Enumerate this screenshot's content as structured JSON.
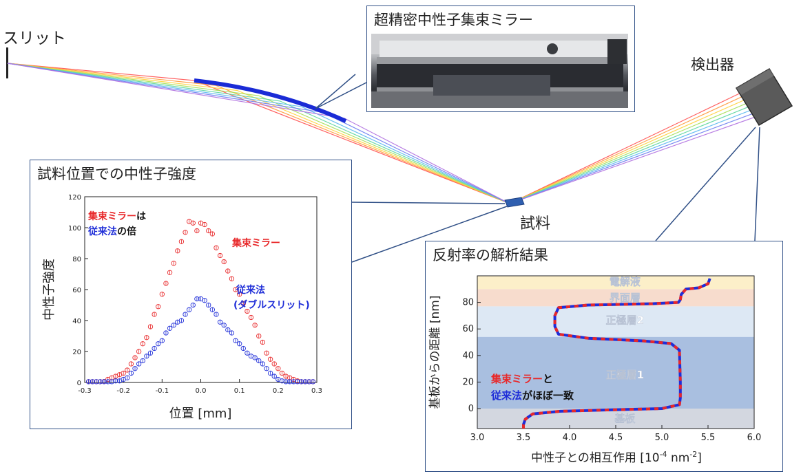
{
  "labels": {
    "slit": "スリット",
    "detector": "検出器",
    "sample": "試料"
  },
  "mirror_box": {
    "title": "超精密中性子集束ミラー"
  },
  "intensity_chart": {
    "title": "試料位置での中性子強度",
    "xlabel": "位置 [mm]",
    "ylabel": "中性子強度",
    "x_ticks": [
      "-0.3",
      "-0.2",
      "-0.1",
      "0.0",
      "0.1",
      "0.2",
      "0.3"
    ],
    "y_ticks": [
      "0",
      "20",
      "40",
      "60",
      "80",
      "100",
      "120"
    ],
    "annotation_line1_part1": "集束ミラー",
    "annotation_line1_part2": "は",
    "annotation_line2_part1": "従来法",
    "annotation_line2_part2": "の倍",
    "mirror_label": "集束ミラー",
    "conventional_label1": "従来法",
    "conventional_label2": "(ダブルスリット)"
  },
  "reflectivity_chart": {
    "title": "反射率の解析結果",
    "xlabel": "中性子との相互作用 [10",
    "xlabel_sup1": "-4",
    "xlabel_mid": " nm",
    "xlabel_sup2": "-2",
    "xlabel_end": "]",
    "ylabel": "基板からの距離 [nm]",
    "x_ticks": [
      "3.0",
      "3.5",
      "4.0",
      "4.5",
      "5.0",
      "5.5",
      "6.0"
    ],
    "y_ticks": [
      "0",
      "20",
      "40",
      "60",
      "80"
    ],
    "layers": [
      "電解液",
      "界面層",
      "正極層2",
      "正極層1",
      "基板"
    ],
    "annotation_line1_part1": "集束ミラー",
    "annotation_line1_part2": "と",
    "annotation_line2_part1": "従来法",
    "annotation_line2_part2": "がほぼ一致"
  },
  "colors": {
    "mirror": "#e8282a",
    "conventional": "#1f2ed8",
    "box_border": "#2f4f86",
    "mirror_plate": "#1a2bd6",
    "layer_electrolyte": "#fcefc9",
    "layer_interface": "#f7dccd",
    "layer_cathode2": "#dde8f4",
    "layer_cathode1": "#a9bfe0",
    "layer_substrate": "#d3d7e0"
  },
  "chart_data": [
    {
      "type": "scatter",
      "title": "試料位置での中性子強度",
      "xlabel": "位置 [mm]",
      "ylabel": "中性子強度",
      "xlim": [
        -0.3,
        0.3
      ],
      "ylim": [
        0,
        120
      ],
      "series": [
        {
          "name": "集束ミラー",
          "x": [
            -0.29,
            -0.28,
            -0.27,
            -0.26,
            -0.25,
            -0.24,
            -0.23,
            -0.22,
            -0.21,
            -0.2,
            -0.19,
            -0.18,
            -0.17,
            -0.16,
            -0.15,
            -0.14,
            -0.13,
            -0.12,
            -0.11,
            -0.1,
            -0.09,
            -0.08,
            -0.07,
            -0.06,
            -0.05,
            -0.04,
            -0.03,
            -0.02,
            -0.01,
            0.0,
            0.01,
            0.02,
            0.03,
            0.04,
            0.05,
            0.06,
            0.07,
            0.08,
            0.09,
            0.1,
            0.11,
            0.12,
            0.13,
            0.14,
            0.15,
            0.16,
            0.17,
            0.18,
            0.19,
            0.2,
            0.21,
            0.22,
            0.23,
            0.24,
            0.25,
            0.26,
            0.27,
            0.28,
            0.29
          ],
          "values": [
            0.5,
            0.5,
            0.5,
            0.5,
            0.6,
            2,
            3,
            4,
            5,
            6,
            8,
            12,
            16,
            20,
            25,
            29,
            36,
            44,
            49,
            57,
            64,
            71,
            77,
            85,
            91,
            97,
            104,
            103,
            98,
            103,
            102,
            98,
            96,
            87,
            82,
            78,
            72,
            67,
            60,
            57,
            51,
            46,
            42,
            37,
            30,
            26,
            19,
            15,
            12,
            9,
            6,
            4,
            3,
            2,
            1,
            0.5,
            0.5,
            0.5,
            0.5
          ]
        },
        {
          "name": "従来法 (ダブルスリット)",
          "x": [
            -0.29,
            -0.28,
            -0.27,
            -0.26,
            -0.25,
            -0.24,
            -0.23,
            -0.22,
            -0.21,
            -0.2,
            -0.19,
            -0.18,
            -0.17,
            -0.16,
            -0.15,
            -0.14,
            -0.13,
            -0.12,
            -0.11,
            -0.1,
            -0.09,
            -0.08,
            -0.07,
            -0.06,
            -0.05,
            -0.04,
            -0.03,
            -0.02,
            -0.01,
            0.0,
            0.01,
            0.02,
            0.03,
            0.04,
            0.05,
            0.06,
            0.07,
            0.08,
            0.09,
            0.1,
            0.11,
            0.12,
            0.13,
            0.14,
            0.15,
            0.16,
            0.17,
            0.18,
            0.19,
            0.2,
            0.21,
            0.22,
            0.23,
            0.24,
            0.25,
            0.26,
            0.27,
            0.28,
            0.29
          ],
          "values": [
            0.5,
            0.5,
            0.5,
            0.5,
            0.5,
            0.5,
            0.5,
            1,
            1,
            2,
            3,
            6,
            9,
            12,
            14,
            17,
            19,
            22,
            25,
            27,
            32,
            35,
            37,
            39,
            40,
            44,
            47,
            50,
            54,
            54,
            53,
            50,
            47,
            44,
            39,
            37,
            34,
            32,
            27,
            25,
            22,
            19,
            17,
            16,
            14,
            12,
            9,
            6,
            4,
            2,
            1,
            0.5,
            0.5,
            0.5,
            0.5,
            0.5,
            0.5,
            0.5,
            0.5
          ]
        }
      ]
    },
    {
      "type": "line",
      "title": "反射率の解析結果",
      "xlabel": "中性子との相互作用 [10-4 nm-2]",
      "ylabel": "基板からの距離 [nm]",
      "xlim": [
        3.0,
        6.0
      ],
      "ylim": [
        -15,
        100
      ],
      "series": [
        {
          "name": "集束ミラー",
          "x": [
            3.5,
            3.5,
            3.52,
            3.6,
            3.9,
            4.4,
            5.0,
            5.19,
            5.2,
            5.2,
            5.19,
            5.1,
            4.8,
            4.2,
            3.88,
            3.84,
            3.84,
            3.88,
            4.2,
            4.9,
            5.18,
            5.2,
            5.21,
            5.26,
            5.4,
            5.5,
            5.52
          ],
          "y": [
            -15,
            -12,
            -8,
            -4,
            -2,
            -1,
            0,
            3,
            8,
            20,
            44,
            49,
            51,
            53,
            56,
            62,
            70,
            76,
            78,
            79,
            80,
            82,
            86,
            90,
            91,
            94,
            98
          ]
        },
        {
          "name": "従来法",
          "x": [
            3.5,
            3.5,
            3.52,
            3.6,
            3.9,
            4.4,
            5.0,
            5.19,
            5.2,
            5.2,
            5.19,
            5.1,
            4.8,
            4.2,
            3.88,
            3.84,
            3.84,
            3.88,
            4.2,
            4.9,
            5.18,
            5.2,
            5.21,
            5.26,
            5.4,
            5.5,
            5.52
          ],
          "y": [
            -15,
            -12,
            -8,
            -4,
            -2,
            -1,
            0,
            3,
            8,
            20,
            44,
            49,
            51,
            53,
            56,
            62,
            70,
            76,
            78,
            79,
            80,
            82,
            86,
            90,
            91,
            94,
            98
          ]
        }
      ]
    }
  ]
}
